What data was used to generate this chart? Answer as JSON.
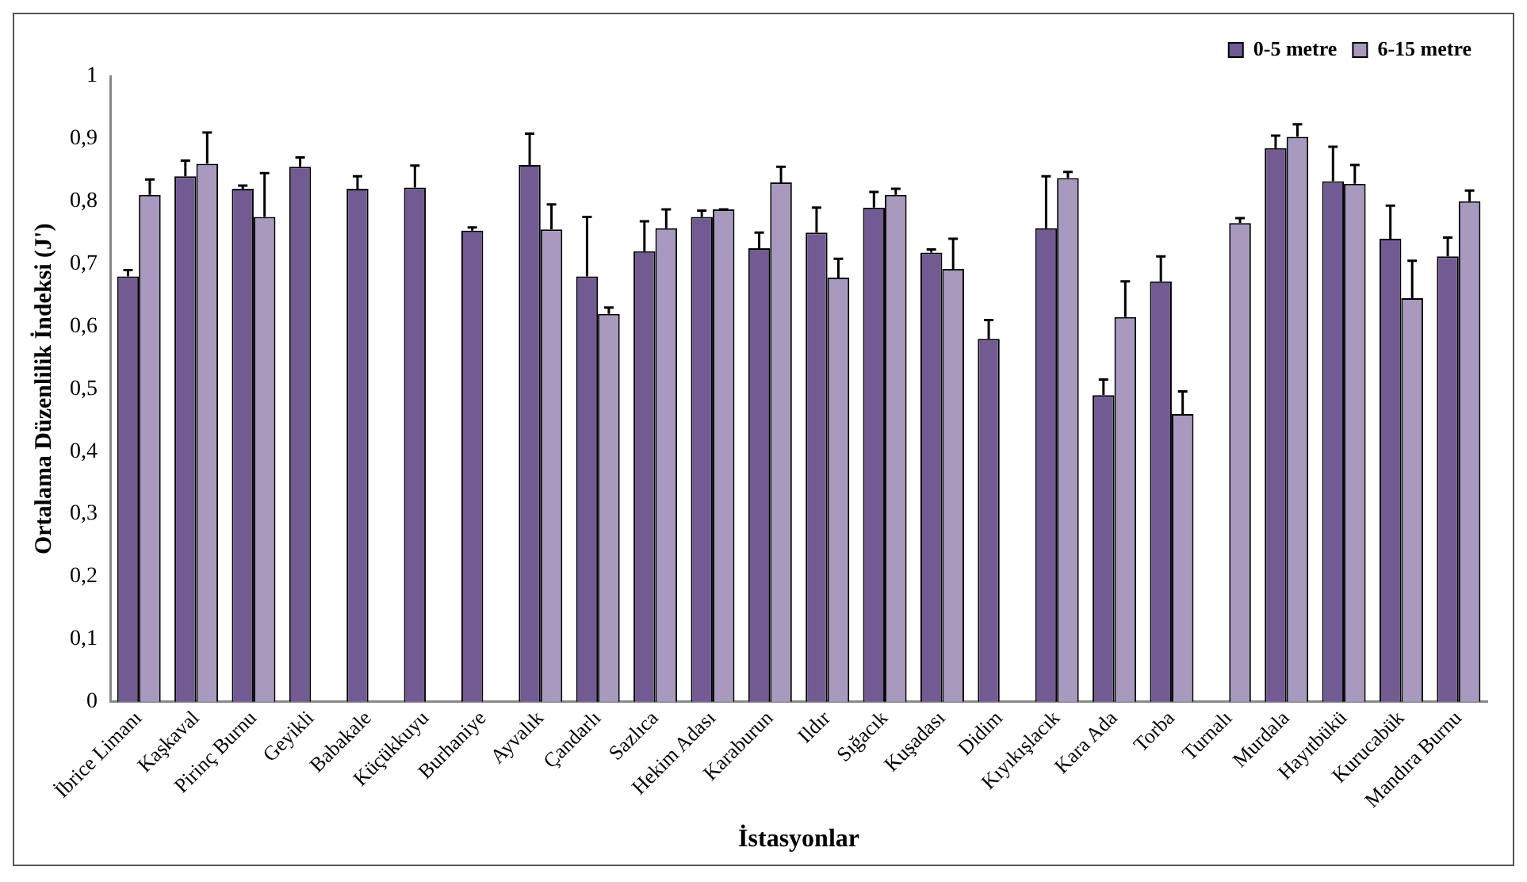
{
  "chart_data": {
    "type": "bar",
    "xlabel": "İstasyonlar",
    "ylabel": "Ortalama Düzenlilik İndeksi (J')",
    "categories": [
      "İbrice Limanı",
      "Kaşkaval",
      "Pirinç Burnu",
      "Geyikli",
      "Babakale",
      "Küçükkuyu",
      "Burhaniye",
      "Ayvalık",
      "Çandarlı",
      "Sazlıca",
      "Hekim Adası",
      "Karaburun",
      "Ildır",
      "Sığacık",
      "Kuşadası",
      "Didim",
      "Kıyıkışlacık",
      "Kara Ada",
      "Torba",
      "Turnalı",
      "Murdala",
      "Hayıtbükü",
      "Kurucabük",
      "Mandıra Burnu"
    ],
    "series": [
      {
        "name": "0-5 metre",
        "color": "#725a92",
        "values": [
          0.68,
          0.84,
          0.82,
          0.855,
          0.82,
          0.822,
          0.753,
          0.858,
          0.68,
          0.72,
          0.775,
          0.725,
          0.75,
          0.79,
          0.718,
          0.58,
          0.757,
          0.49,
          0.672,
          null,
          0.885,
          0.832,
          0.74,
          0.712
        ],
        "errors": [
          [
            0.68,
            0.69
          ],
          [
            0.84,
            0.865
          ],
          [
            0.82,
            0.825
          ],
          [
            0.855,
            0.87
          ],
          [
            0.82,
            0.84
          ],
          [
            0.822,
            0.857
          ],
          [
            0.753,
            0.758
          ],
          [
            0.858,
            0.908
          ],
          [
            0.68,
            0.775
          ],
          [
            0.72,
            0.768
          ],
          [
            0.775,
            0.785
          ],
          [
            0.725,
            0.75
          ],
          [
            0.75,
            0.79
          ],
          [
            0.79,
            0.815
          ],
          [
            0.718,
            0.723
          ],
          [
            0.58,
            0.61
          ],
          [
            0.757,
            0.84
          ],
          [
            0.49,
            0.515
          ],
          [
            0.672,
            0.712
          ],
          null,
          [
            0.885,
            0.905
          ],
          [
            0.832,
            0.887
          ],
          [
            0.74,
            0.793
          ],
          [
            0.712,
            0.742
          ]
        ]
      },
      {
        "name": "6-15 metre",
        "color": "#a899bf",
        "values": [
          0.81,
          0.86,
          0.775,
          null,
          null,
          null,
          null,
          0.755,
          0.62,
          0.757,
          0.787,
          0.83,
          0.678,
          0.81,
          0.692,
          null,
          0.837,
          0.615,
          0.46,
          0.765,
          0.903,
          0.828,
          0.645,
          0.8
        ],
        "errors": [
          [
            0.81,
            0.835
          ],
          [
            0.86,
            0.91
          ],
          [
            0.775,
            0.845
          ],
          null,
          null,
          null,
          null,
          [
            0.755,
            0.795
          ],
          [
            0.62,
            0.63
          ],
          [
            0.757,
            0.787
          ],
          [
            0.787,
            0.787
          ],
          [
            0.83,
            0.855
          ],
          [
            0.678,
            0.708
          ],
          [
            0.81,
            0.82
          ],
          [
            0.692,
            0.74
          ],
          null,
          [
            0.837,
            0.847
          ],
          [
            0.615,
            0.672
          ],
          [
            0.46,
            0.496
          ],
          [
            0.765,
            0.773
          ],
          [
            0.903,
            0.923
          ],
          [
            0.828,
            0.858
          ],
          [
            0.645,
            0.705
          ],
          [
            0.8,
            0.817
          ]
        ]
      }
    ],
    "ylim": [
      0,
      1
    ],
    "yticks": [
      0,
      {
        "value": 0.1,
        "label": "0,1"
      },
      {
        "value": 0.2,
        "label": "0,2"
      },
      {
        "value": 0.3,
        "label": "0,3"
      },
      {
        "value": 0.4,
        "label": "0,4"
      },
      {
        "value": 0.5,
        "label": "0,5"
      },
      {
        "value": 0.6,
        "label": "0,6"
      },
      {
        "value": 0.7,
        "label": "0,7"
      },
      {
        "value": 0.8,
        "label": "0,8"
      },
      {
        "value": 0.9,
        "label": "0,9"
      },
      1
    ],
    "grid": false,
    "legend": "top right"
  }
}
